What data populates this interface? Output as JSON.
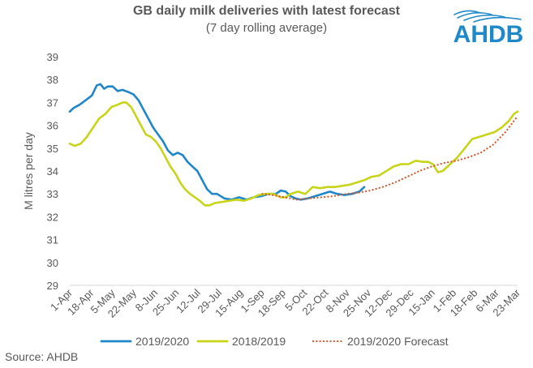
{
  "header": {
    "title": "GB daily milk deliveries with latest forecast",
    "subtitle": "(7 day rolling average)"
  },
  "logo": {
    "text": "AHDB",
    "color": "#1E88C8"
  },
  "footer": {
    "source": "Source: AHDB"
  },
  "colors": {
    "series_2019_2020": "#1F87C9",
    "series_2018_2019": "#C8D41A",
    "series_forecast": "#D4582A",
    "axis_text": "#595959"
  },
  "chart_data": {
    "type": "line",
    "title": "GB daily milk deliveries with latest forecast",
    "subtitle": "(7 day rolling average)",
    "xlabel": "",
    "ylabel": "M litres per day",
    "ylim": [
      29,
      39
    ],
    "yticks": [
      "29",
      "30",
      "31",
      "32",
      "33",
      "34",
      "35",
      "36",
      "37",
      "38",
      "39"
    ],
    "xticks": [
      "1-Apr",
      "18-Apr",
      "5-May",
      "22-May",
      "8-Jun",
      "25-Jun",
      "12-Jul",
      "29-Jul",
      "15-Aug",
      "1-Sep",
      "18-Sep",
      "5-Oct",
      "22-Oct",
      "8-Nov",
      "25-Nov",
      "12-Dec",
      "29-Dec",
      "15-Jan",
      "1-Feb",
      "18-Feb",
      "6-Mar",
      "23-Mar"
    ],
    "grid": false,
    "legend_position": "bottom",
    "x_unit": "days from 1-Apr",
    "series": [
      {
        "name": "2019/2020",
        "color": "#1F87C9",
        "style": "solid",
        "points": [
          [
            0,
            36.6
          ],
          [
            3,
            36.75
          ],
          [
            8,
            36.9
          ],
          [
            13,
            37.1
          ],
          [
            18,
            37.3
          ],
          [
            22,
            37.75
          ],
          [
            25,
            37.8
          ],
          [
            28,
            37.6
          ],
          [
            31,
            37.7
          ],
          [
            35,
            37.7
          ],
          [
            39,
            37.5
          ],
          [
            43,
            37.55
          ],
          [
            48,
            37.45
          ],
          [
            52,
            37.35
          ],
          [
            56,
            37.1
          ],
          [
            60,
            36.7
          ],
          [
            64,
            36.3
          ],
          [
            68,
            35.9
          ],
          [
            72,
            35.6
          ],
          [
            76,
            35.3
          ],
          [
            80,
            34.9
          ],
          [
            84,
            34.7
          ],
          [
            88,
            34.8
          ],
          [
            92,
            34.7
          ],
          [
            96,
            34.4
          ],
          [
            100,
            34.2
          ],
          [
            104,
            34.0
          ],
          [
            108,
            33.6
          ],
          [
            112,
            33.2
          ],
          [
            116,
            33.0
          ],
          [
            120,
            33.0
          ],
          [
            126,
            32.8
          ],
          [
            132,
            32.75
          ],
          [
            138,
            32.85
          ],
          [
            144,
            32.75
          ],
          [
            150,
            32.85
          ],
          [
            156,
            32.9
          ],
          [
            162,
            33.0
          ],
          [
            168,
            33.0
          ],
          [
            172,
            33.15
          ],
          [
            176,
            33.1
          ],
          [
            180,
            32.9
          ],
          [
            184,
            32.8
          ],
          [
            188,
            32.75
          ],
          [
            194,
            32.8
          ],
          [
            200,
            32.9
          ],
          [
            206,
            33.0
          ],
          [
            212,
            33.1
          ],
          [
            218,
            33.0
          ],
          [
            224,
            32.95
          ],
          [
            230,
            33.0
          ],
          [
            236,
            33.1
          ],
          [
            240,
            33.3
          ]
        ]
      },
      {
        "name": "2018/2019",
        "color": "#C8D41A",
        "style": "solid",
        "points": [
          [
            0,
            35.2
          ],
          [
            4,
            35.1
          ],
          [
            9,
            35.2
          ],
          [
            14,
            35.5
          ],
          [
            19,
            35.9
          ],
          [
            24,
            36.3
          ],
          [
            29,
            36.5
          ],
          [
            34,
            36.8
          ],
          [
            39,
            36.9
          ],
          [
            43,
            37.0
          ],
          [
            46,
            37.0
          ],
          [
            50,
            36.8
          ],
          [
            54,
            36.4
          ],
          [
            58,
            36.0
          ],
          [
            62,
            35.6
          ],
          [
            66,
            35.5
          ],
          [
            70,
            35.3
          ],
          [
            74,
            35.0
          ],
          [
            78,
            34.6
          ],
          [
            82,
            34.2
          ],
          [
            86,
            33.9
          ],
          [
            90,
            33.5
          ],
          [
            94,
            33.2
          ],
          [
            98,
            33.0
          ],
          [
            102,
            32.85
          ],
          [
            106,
            32.7
          ],
          [
            110,
            32.5
          ],
          [
            114,
            32.5
          ],
          [
            118,
            32.6
          ],
          [
            124,
            32.65
          ],
          [
            130,
            32.7
          ],
          [
            136,
            32.75
          ],
          [
            142,
            32.7
          ],
          [
            148,
            32.8
          ],
          [
            154,
            32.95
          ],
          [
            160,
            33.0
          ],
          [
            166,
            33.0
          ],
          [
            172,
            32.85
          ],
          [
            176,
            32.85
          ],
          [
            180,
            33.0
          ],
          [
            186,
            33.1
          ],
          [
            192,
            33.0
          ],
          [
            198,
            33.3
          ],
          [
            204,
            33.25
          ],
          [
            210,
            33.3
          ],
          [
            216,
            33.3
          ],
          [
            222,
            33.35
          ],
          [
            228,
            33.4
          ],
          [
            234,
            33.5
          ],
          [
            240,
            33.6
          ],
          [
            246,
            33.75
          ],
          [
            252,
            33.8
          ],
          [
            258,
            34.0
          ],
          [
            264,
            34.2
          ],
          [
            270,
            34.3
          ],
          [
            276,
            34.3
          ],
          [
            282,
            34.45
          ],
          [
            288,
            34.4
          ],
          [
            292,
            34.4
          ],
          [
            296,
            34.3
          ],
          [
            300,
            33.95
          ],
          [
            304,
            34.0
          ],
          [
            310,
            34.3
          ],
          [
            316,
            34.6
          ],
          [
            322,
            35.0
          ],
          [
            328,
            35.4
          ],
          [
            334,
            35.5
          ],
          [
            340,
            35.6
          ],
          [
            346,
            35.7
          ],
          [
            352,
            35.9
          ],
          [
            358,
            36.2
          ],
          [
            362,
            36.5
          ],
          [
            365,
            36.6
          ]
        ]
      },
      {
        "name": "2019/2020 Forecast",
        "color": "#D4582A",
        "style": "dotted",
        "points": [
          [
            157,
            33.0
          ],
          [
            165,
            32.95
          ],
          [
            175,
            32.85
          ],
          [
            185,
            32.75
          ],
          [
            195,
            32.8
          ],
          [
            205,
            32.85
          ],
          [
            215,
            32.9
          ],
          [
            225,
            33.0
          ],
          [
            235,
            33.05
          ],
          [
            245,
            33.15
          ],
          [
            255,
            33.3
          ],
          [
            265,
            33.5
          ],
          [
            275,
            33.75
          ],
          [
            285,
            34.0
          ],
          [
            295,
            34.2
          ],
          [
            305,
            34.35
          ],
          [
            315,
            34.45
          ],
          [
            325,
            34.6
          ],
          [
            335,
            34.8
          ],
          [
            345,
            35.15
          ],
          [
            355,
            35.7
          ],
          [
            365,
            36.4
          ]
        ]
      }
    ]
  }
}
